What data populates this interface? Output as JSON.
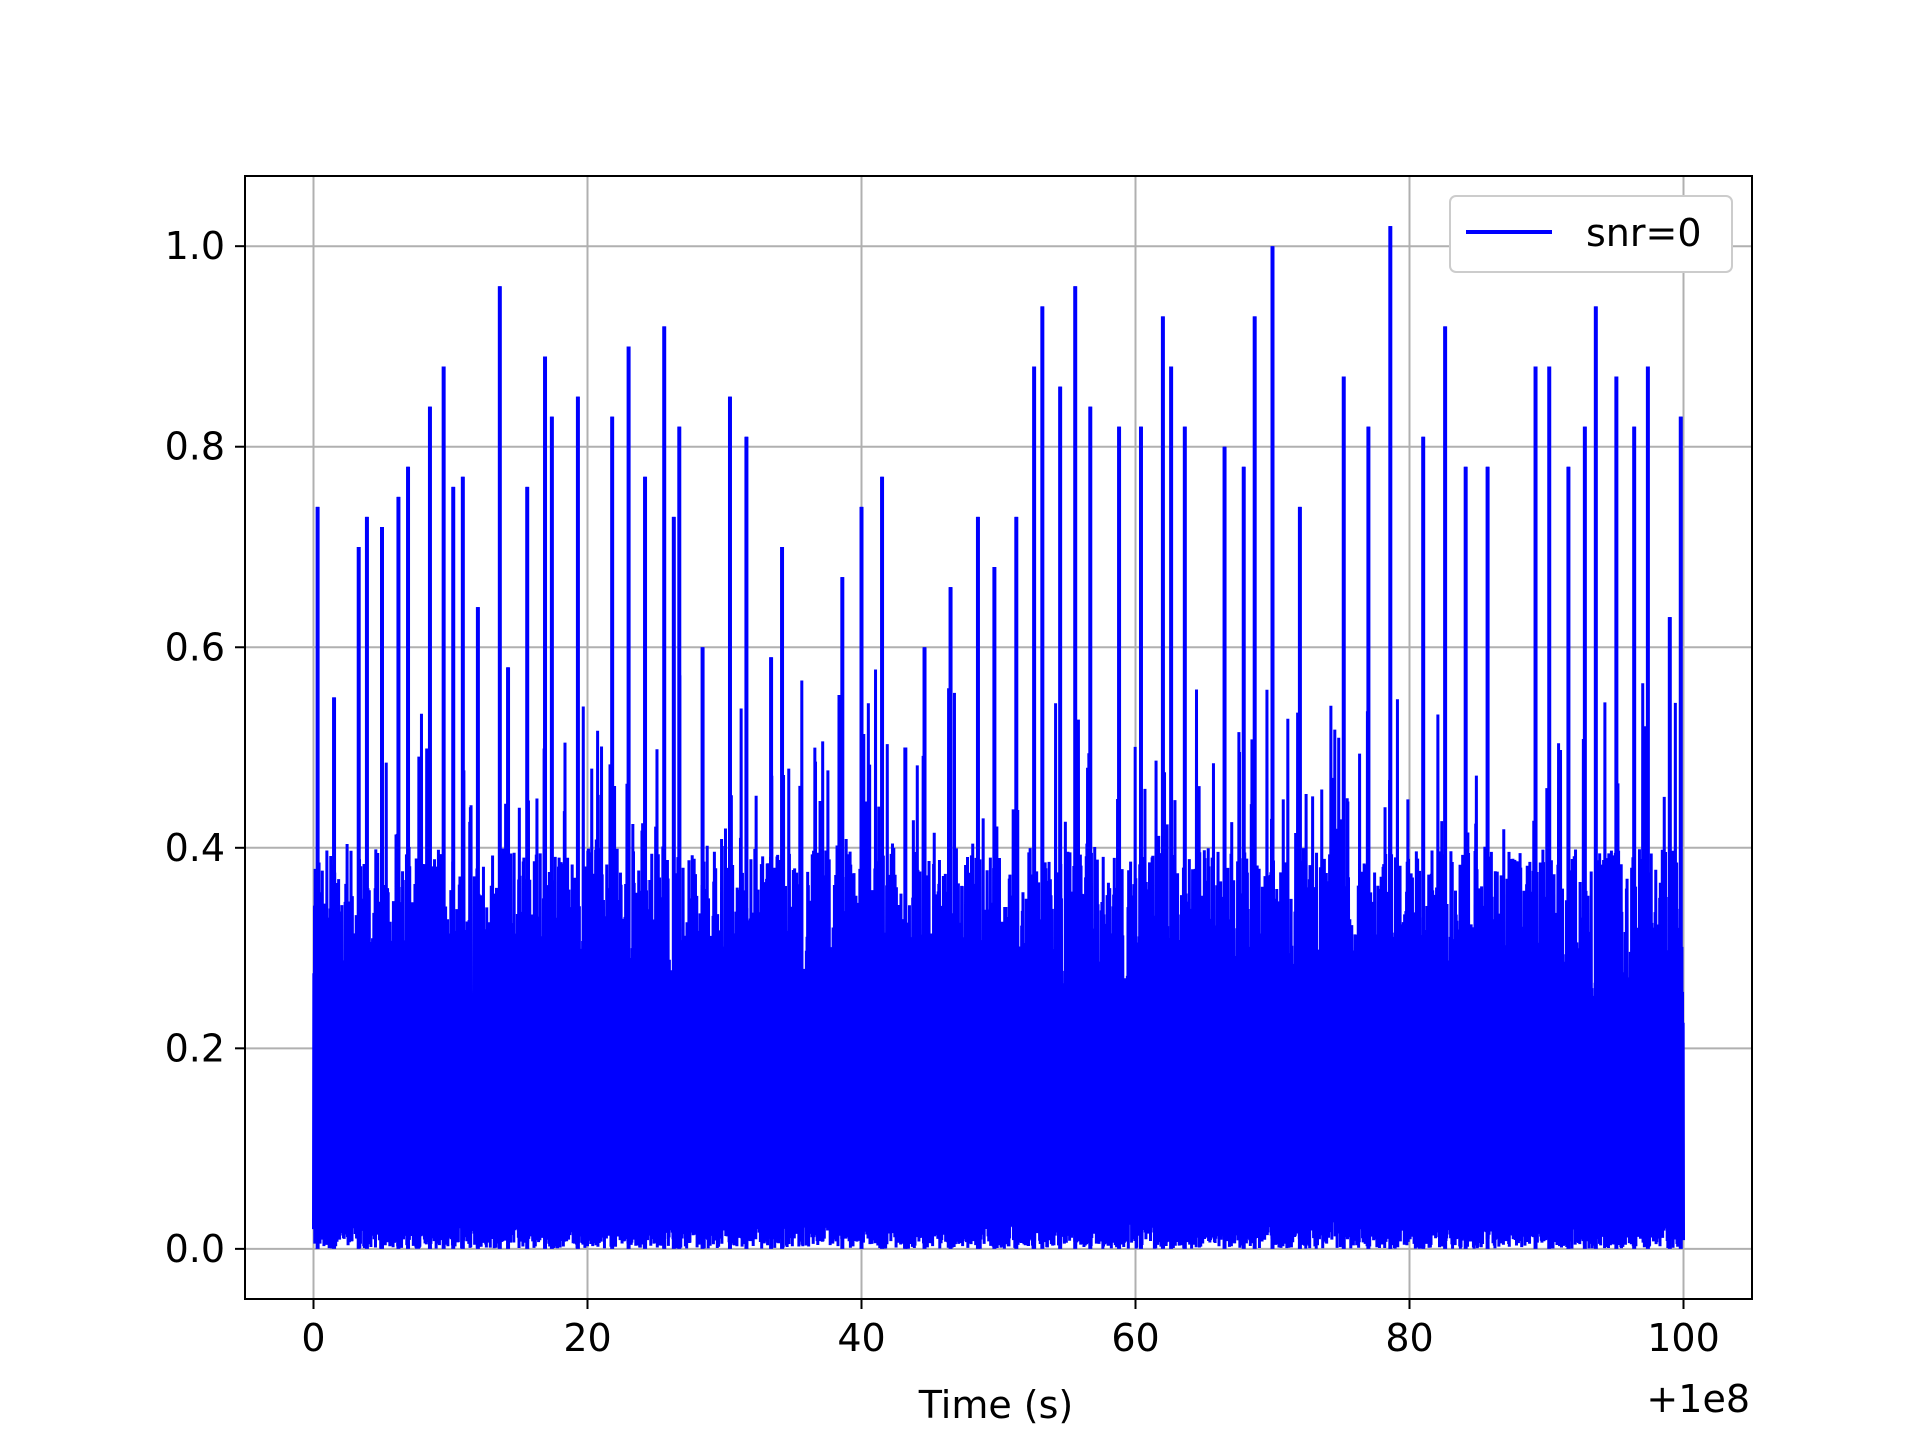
{
  "chart_data": {
    "type": "line",
    "title": "",
    "xlabel": "Time (s)",
    "ylabel": "",
    "x_offset_label": "+1e8",
    "xlim": [
      -5,
      105
    ],
    "ylim": [
      -0.05,
      1.07
    ],
    "x_ticks": [
      0,
      20,
      40,
      60,
      80,
      100
    ],
    "x_tick_labels": [
      "0",
      "20",
      "40",
      "60",
      "80",
      "100"
    ],
    "y_ticks": [
      0.0,
      0.2,
      0.4,
      0.6,
      0.8,
      1.0
    ],
    "y_tick_labels": [
      "0.0",
      "0.2",
      "0.4",
      "0.6",
      "0.8",
      "1.0"
    ],
    "grid": true,
    "legend_position": "top-right",
    "series": [
      {
        "name": "snr=0",
        "color": "#0000ff",
        "x_range": [
          0,
          100
        ],
        "y_floor": 0.0,
        "dense_band_top": 0.4,
        "peaks": [
          {
            "x": 0.3,
            "y": 0.74
          },
          {
            "x": 1.5,
            "y": 0.55
          },
          {
            "x": 3.3,
            "y": 0.7
          },
          {
            "x": 3.9,
            "y": 0.73
          },
          {
            "x": 5.0,
            "y": 0.72
          },
          {
            "x": 6.2,
            "y": 0.75
          },
          {
            "x": 6.9,
            "y": 0.78
          },
          {
            "x": 8.5,
            "y": 0.84
          },
          {
            "x": 9.5,
            "y": 0.88
          },
          {
            "x": 10.2,
            "y": 0.76
          },
          {
            "x": 10.9,
            "y": 0.77
          },
          {
            "x": 12.0,
            "y": 0.64
          },
          {
            "x": 13.6,
            "y": 0.96
          },
          {
            "x": 14.2,
            "y": 0.58
          },
          {
            "x": 15.6,
            "y": 0.76
          },
          {
            "x": 16.9,
            "y": 0.89
          },
          {
            "x": 17.4,
            "y": 0.83
          },
          {
            "x": 19.3,
            "y": 0.85
          },
          {
            "x": 21.8,
            "y": 0.83
          },
          {
            "x": 23.0,
            "y": 0.9
          },
          {
            "x": 24.2,
            "y": 0.77
          },
          {
            "x": 25.6,
            "y": 0.92
          },
          {
            "x": 26.3,
            "y": 0.73
          },
          {
            "x": 26.7,
            "y": 0.82
          },
          {
            "x": 28.4,
            "y": 0.6
          },
          {
            "x": 30.4,
            "y": 0.85
          },
          {
            "x": 31.6,
            "y": 0.81
          },
          {
            "x": 33.4,
            "y": 0.59
          },
          {
            "x": 34.2,
            "y": 0.7
          },
          {
            "x": 38.6,
            "y": 0.67
          },
          {
            "x": 40.0,
            "y": 0.74
          },
          {
            "x": 41.5,
            "y": 0.77
          },
          {
            "x": 43.2,
            "y": 0.5
          },
          {
            "x": 44.6,
            "y": 0.6
          },
          {
            "x": 46.5,
            "y": 0.66
          },
          {
            "x": 48.5,
            "y": 0.73
          },
          {
            "x": 49.7,
            "y": 0.68
          },
          {
            "x": 51.3,
            "y": 0.73
          },
          {
            "x": 52.6,
            "y": 0.88
          },
          {
            "x": 53.2,
            "y": 0.94
          },
          {
            "x": 54.5,
            "y": 0.86
          },
          {
            "x": 55.6,
            "y": 0.96
          },
          {
            "x": 56.7,
            "y": 0.84
          },
          {
            "x": 58.8,
            "y": 0.82
          },
          {
            "x": 60.4,
            "y": 0.82
          },
          {
            "x": 62.0,
            "y": 0.93
          },
          {
            "x": 62.6,
            "y": 0.88
          },
          {
            "x": 63.6,
            "y": 0.82
          },
          {
            "x": 66.5,
            "y": 0.8
          },
          {
            "x": 67.9,
            "y": 0.78
          },
          {
            "x": 68.7,
            "y": 0.93
          },
          {
            "x": 70.0,
            "y": 1.0
          },
          {
            "x": 72.0,
            "y": 0.74
          },
          {
            "x": 75.2,
            "y": 0.87
          },
          {
            "x": 77.0,
            "y": 0.82
          },
          {
            "x": 78.6,
            "y": 1.02
          },
          {
            "x": 81.0,
            "y": 0.81
          },
          {
            "x": 82.6,
            "y": 0.92
          },
          {
            "x": 84.1,
            "y": 0.78
          },
          {
            "x": 85.7,
            "y": 0.78
          },
          {
            "x": 89.2,
            "y": 0.88
          },
          {
            "x": 90.2,
            "y": 0.88
          },
          {
            "x": 91.6,
            "y": 0.78
          },
          {
            "x": 92.8,
            "y": 0.82
          },
          {
            "x": 93.6,
            "y": 0.94
          },
          {
            "x": 95.1,
            "y": 0.87
          },
          {
            "x": 96.4,
            "y": 0.82
          },
          {
            "x": 97.4,
            "y": 0.88
          },
          {
            "x": 99.0,
            "y": 0.63
          },
          {
            "x": 99.8,
            "y": 0.83
          }
        ]
      }
    ]
  }
}
